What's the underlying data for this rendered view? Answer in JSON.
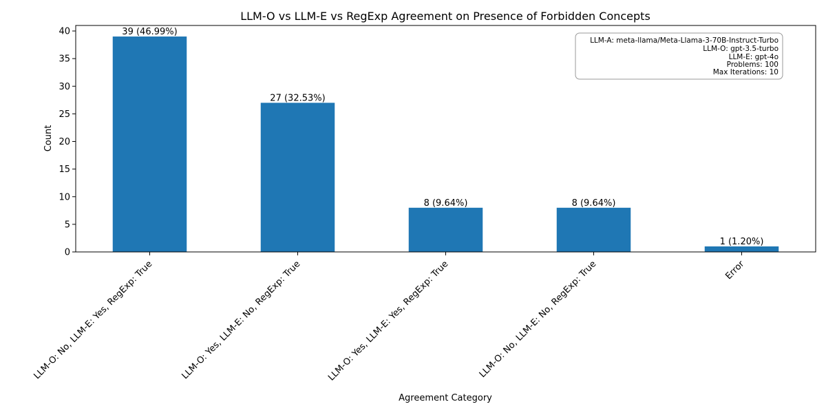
{
  "chart_data": {
    "type": "bar",
    "title": "LLM-O vs LLM-E vs RegExp Agreement on Presence of Forbidden Concepts",
    "xlabel": "Agreement Category",
    "ylabel": "Count",
    "categories": [
      "LLM-O: No, LLM-E: Yes, RegExp: True",
      "LLM-O: Yes, LLM-E: No, RegExp: True",
      "LLM-O: Yes, LLM-E: Yes, RegExp: True",
      "LLM-O: No, LLM-E: No, RegExp: True",
      "Error"
    ],
    "values": [
      39,
      27,
      8,
      8,
      1
    ],
    "bar_labels": [
      "39 (46.99%)",
      "27 (32.53%)",
      "8 (9.64%)",
      "8 (9.64%)",
      "1 (1.20%)"
    ],
    "ylim": [
      0,
      41
    ],
    "yticks": [
      0,
      5,
      10,
      15,
      20,
      25,
      30,
      35,
      40
    ],
    "grid": false,
    "bar_color": "#1f77b4",
    "info_box": {
      "placement": "top-right",
      "lines": [
        "LLM-A: meta-llama/Meta-Llama-3-70B-Instruct-Turbo",
        "LLM-O: gpt-3.5-turbo",
        "LLM-E: gpt-4o",
        "Problems: 100",
        "Max Iterations: 10"
      ]
    }
  }
}
